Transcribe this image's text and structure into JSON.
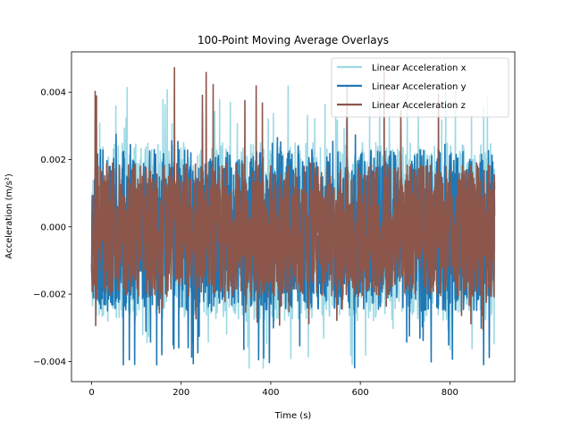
{
  "chart_data": {
    "type": "line",
    "title": "100-Point Moving Average Overlays",
    "xlabel": "Time (s)",
    "ylabel": "Acceleration (m/s²)",
    "xlim": [
      -45,
      945
    ],
    "ylim": [
      -0.0046,
      0.0052
    ],
    "xticks": [
      0,
      200,
      400,
      600,
      800
    ],
    "xtick_labels": [
      "0",
      "200",
      "400",
      "600",
      "800"
    ],
    "yticks": [
      -0.004,
      -0.002,
      0.0,
      0.002,
      0.004
    ],
    "ytick_labels": [
      "−0.004",
      "−0.002",
      "0.000",
      "0.002",
      "0.004"
    ],
    "grid": false,
    "legend_position": "top-right",
    "x_range": [
      0,
      900
    ],
    "series": [
      {
        "name": "Linear Acceleration x",
        "color": "#9dd9e4",
        "envelope_high": 0.0025,
        "envelope_low": -0.0028,
        "peak_max": 0.0042,
        "peak_min": -0.0042
      },
      {
        "name": "Linear Acceleration y",
        "color": "#1f77b4",
        "envelope_high": 0.0023,
        "envelope_low": -0.0025,
        "peak_max": 0.0028,
        "peak_min": -0.0042
      },
      {
        "name": "Linear Acceleration z",
        "color": "#8c564b",
        "envelope_high": 0.0019,
        "envelope_low": -0.0021,
        "peak_max": 0.0049,
        "peak_min": -0.0031
      }
    ]
  }
}
